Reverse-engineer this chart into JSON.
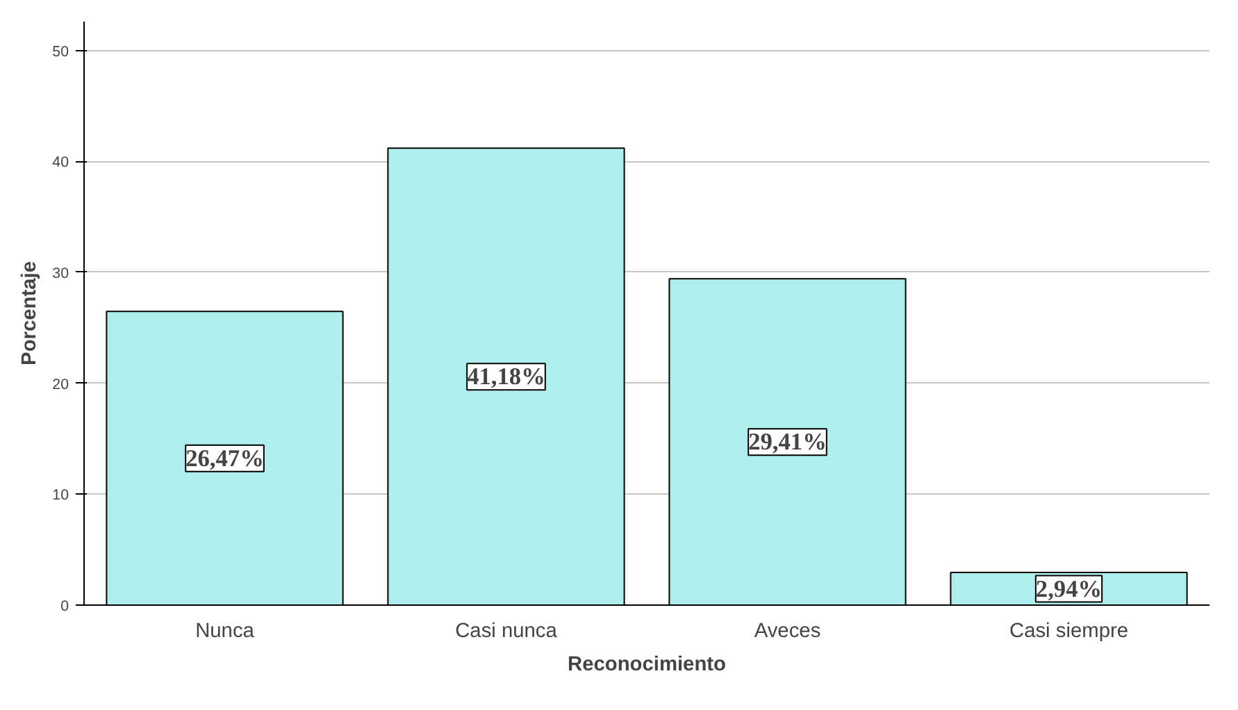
{
  "chart_data": {
    "type": "bar",
    "xlabel": "Reconocimiento",
    "ylabel": "Porcentaje",
    "categories": [
      "Nunca",
      "Casi nunca",
      "Aveces",
      "Casi siempre"
    ],
    "values": [
      26.47,
      41.18,
      29.41,
      2.94
    ],
    "value_labels": [
      "26,47%",
      "41,18%",
      "29,41%",
      "2,94%"
    ],
    "color": "#aeeeed",
    "ylim": [
      0,
      52.6
    ],
    "yticks": [
      0,
      10,
      20,
      30,
      40,
      50
    ],
    "grid": "y"
  }
}
